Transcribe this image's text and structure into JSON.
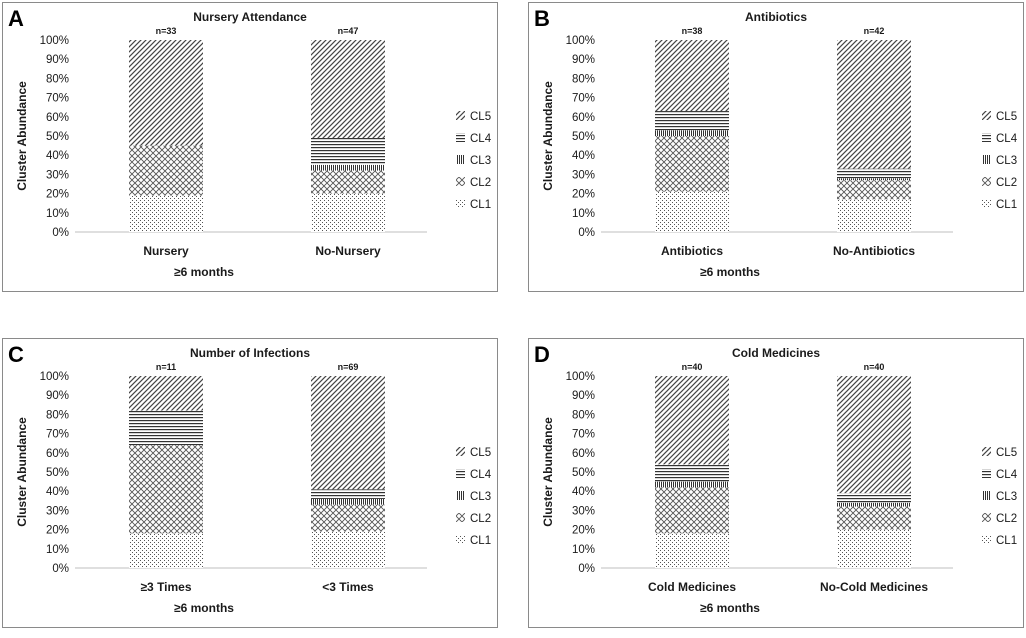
{
  "figure": {
    "patterns": [
      "CL1",
      "CL2",
      "CL3",
      "CL4",
      "CL5"
    ]
  },
  "chart_data": [
    {
      "panel": "A",
      "type": "bar",
      "stacked": "percent",
      "title": "Nursery Attendance",
      "xlabel": "≥6 months",
      "ylabel": "Cluster Abundance",
      "ylim": [
        0,
        100
      ],
      "yticks": [
        "0%",
        "10%",
        "20%",
        "30%",
        "40%",
        "50%",
        "60%",
        "70%",
        "80%",
        "90%",
        "100%"
      ],
      "categories": [
        "Nursery",
        "No-Nursery"
      ],
      "n_labels": [
        "n=33",
        "n=47"
      ],
      "series": [
        {
          "name": "CL1",
          "values": [
            19,
            20
          ]
        },
        {
          "name": "CL2",
          "values": [
            26,
            12
          ]
        },
        {
          "name": "CL3",
          "values": [
            0,
            3
          ]
        },
        {
          "name": "CL4",
          "values": [
            0,
            14
          ]
        },
        {
          "name": "CL5",
          "values": [
            55,
            51
          ]
        }
      ]
    },
    {
      "panel": "B",
      "type": "bar",
      "stacked": "percent",
      "title": "Antibiotics",
      "xlabel": "≥6 months",
      "ylabel": "Cluster Abundance",
      "ylim": [
        0,
        100
      ],
      "yticks": [
        "0%",
        "10%",
        "20%",
        "30%",
        "40%",
        "50%",
        "60%",
        "70%",
        "80%",
        "90%",
        "100%"
      ],
      "categories": [
        "Antibiotics",
        "No-Antibiotics"
      ],
      "n_labels": [
        "n=38",
        "n=42"
      ],
      "series": [
        {
          "name": "CL1",
          "values": [
            21,
            17
          ]
        },
        {
          "name": "CL2",
          "values": [
            29,
            10
          ]
        },
        {
          "name": "CL3",
          "values": [
            3,
            1
          ]
        },
        {
          "name": "CL4",
          "values": [
            10,
            5
          ]
        },
        {
          "name": "CL5",
          "values": [
            37,
            67
          ]
        }
      ]
    },
    {
      "panel": "C",
      "type": "bar",
      "stacked": "percent",
      "title": "Number of Infections",
      "xlabel": "≥6 months",
      "ylabel": "Cluster Abundance",
      "ylim": [
        0,
        100
      ],
      "yticks": [
        "0%",
        "10%",
        "20%",
        "30%",
        "40%",
        "50%",
        "60%",
        "70%",
        "80%",
        "90%",
        "100%"
      ],
      "categories": [
        "≥3 Times",
        "<3 Times"
      ],
      "n_labels": [
        "n=11",
        "n=69"
      ],
      "series": [
        {
          "name": "CL1",
          "values": [
            18,
            19
          ]
        },
        {
          "name": "CL2",
          "values": [
            46,
            14
          ]
        },
        {
          "name": "CL3",
          "values": [
            0,
            3
          ]
        },
        {
          "name": "CL4",
          "values": [
            18,
            5
          ]
        },
        {
          "name": "CL5",
          "values": [
            18,
            59
          ]
        }
      ]
    },
    {
      "panel": "D",
      "type": "bar",
      "stacked": "percent",
      "title": "Cold Medicines",
      "xlabel": "≥6 months",
      "ylabel": "Cluster Abundance",
      "ylim": [
        0,
        100
      ],
      "yticks": [
        "0%",
        "10%",
        "20%",
        "30%",
        "40%",
        "50%",
        "60%",
        "70%",
        "80%",
        "90%",
        "100%"
      ],
      "categories": [
        "Cold Medicines",
        "No-Cold Medicines"
      ],
      "n_labels": [
        "n=40",
        "n=40"
      ],
      "series": [
        {
          "name": "CL1",
          "values": [
            18,
            20
          ]
        },
        {
          "name": "CL2",
          "values": [
            24,
            12
          ]
        },
        {
          "name": "CL3",
          "values": [
            3,
            2
          ]
        },
        {
          "name": "CL4",
          "values": [
            9,
            5
          ]
        },
        {
          "name": "CL5",
          "values": [
            46,
            61
          ]
        }
      ]
    }
  ]
}
